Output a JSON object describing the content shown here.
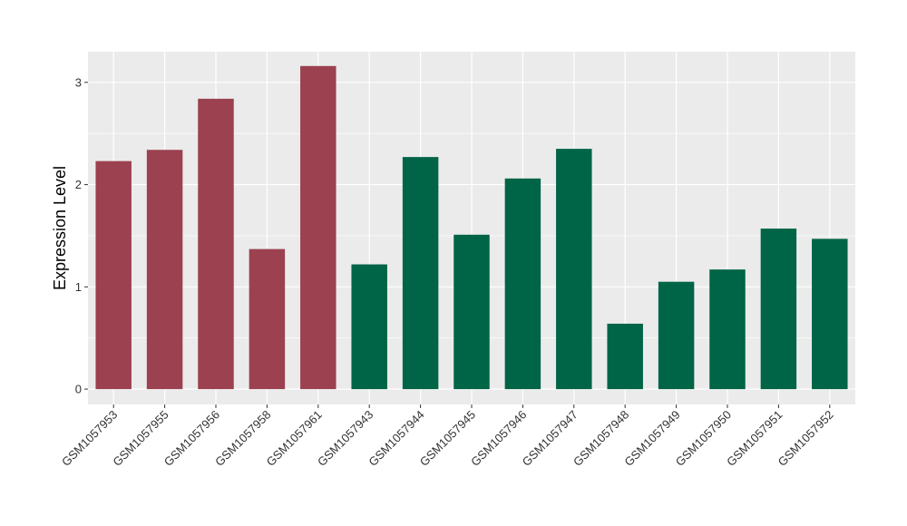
{
  "chart_data": {
    "type": "bar",
    "ylabel": "Expression Level",
    "ylim": [
      -0.15,
      3.3
    ],
    "y_ticks": [
      0,
      1,
      2,
      3
    ],
    "y_tick_labels": [
      "0",
      "1",
      "2",
      "3"
    ],
    "grid": true,
    "legend": "none",
    "categories": [
      "GSM1057953",
      "GSM1057955",
      "GSM1057956",
      "GSM1057958",
      "GSM1057961",
      "GSM1057943",
      "GSM1057944",
      "GSM1057945",
      "GSM1057946",
      "GSM1057947",
      "GSM1057948",
      "GSM1057949",
      "GSM1057950",
      "GSM1057951",
      "GSM1057952"
    ],
    "values": [
      2.23,
      2.34,
      2.84,
      1.37,
      3.16,
      1.22,
      2.27,
      1.51,
      2.06,
      2.35,
      0.64,
      1.05,
      1.17,
      1.57,
      1.47
    ],
    "group_index": [
      0,
      0,
      0,
      0,
      0,
      1,
      1,
      1,
      1,
      1,
      1,
      1,
      1,
      1,
      1
    ],
    "group_colors": [
      "#9b4150",
      "#006446"
    ],
    "panel_background": "#ebebeb",
    "grid_color": "#ffffff"
  }
}
